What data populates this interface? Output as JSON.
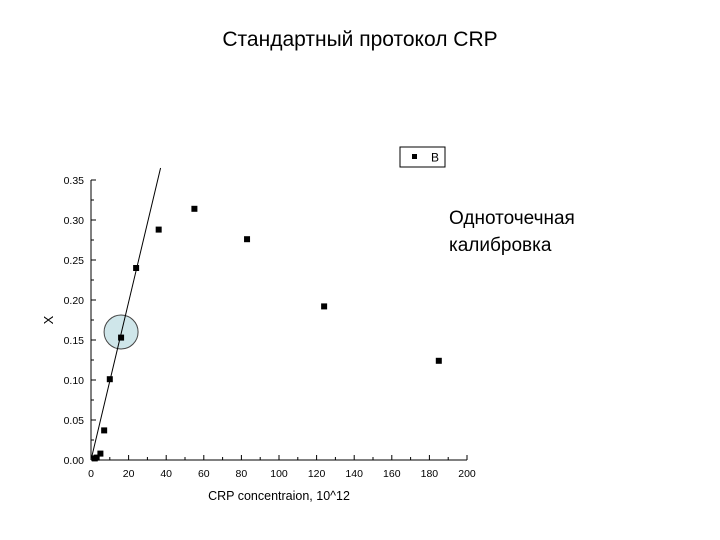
{
  "slide": {
    "title": "Стандартный протокол CRP",
    "annotation_lines": [
      "Одноточечная",
      "калибровка"
    ]
  },
  "chart_data": {
    "type": "scatter",
    "xlabel": "CRP concentraion, 10^12",
    "ylabel": "X",
    "xlim": [
      0,
      200
    ],
    "ylim": [
      0,
      0.35
    ],
    "x_ticks": [
      "0",
      "20",
      "40",
      "60",
      "80",
      "100",
      "120",
      "140",
      "160",
      "180",
      "200"
    ],
    "y_ticks": [
      "0.00",
      "0.05",
      "0.10",
      "0.15",
      "0.20",
      "0.25",
      "0.30",
      "0.35"
    ],
    "grid": false,
    "legend": {
      "position": "top-right",
      "entries": [
        "B"
      ]
    },
    "series": [
      {
        "name": "B",
        "color": "#000000",
        "marker": "square",
        "x": [
          2,
          3,
          5,
          7,
          10,
          16,
          24,
          36,
          55,
          83,
          124,
          185
        ],
        "y": [
          0.002,
          0.003,
          0.008,
          0.037,
          0.101,
          0.153,
          0.24,
          0.288,
          0.314,
          0.276,
          0.192,
          0.124
        ]
      }
    ],
    "calibration_line": {
      "x": [
        0,
        37
      ],
      "y": [
        0.0,
        0.365
      ],
      "color": "#000000"
    },
    "highlight": {
      "x": 16,
      "y": 0.16,
      "fill": "#cfe6ea",
      "stroke": "#444444"
    }
  }
}
